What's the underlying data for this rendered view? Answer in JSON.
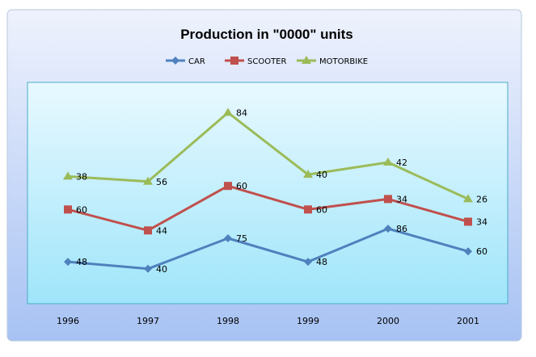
{
  "chart_data": {
    "type": "line",
    "stacked": true,
    "title": "Production in \"0000\" units",
    "categories": [
      "1996",
      "1997",
      "1998",
      "1999",
      "2000",
      "2001"
    ],
    "series": [
      {
        "name": "CAR",
        "color": "#4f81bd",
        "marker": "diamond",
        "values": [
          48,
          40,
          75,
          48,
          86,
          60
        ]
      },
      {
        "name": "SCOOTER",
        "color": "#c0504d",
        "marker": "square",
        "values": [
          60,
          44,
          60,
          60,
          34,
          34
        ]
      },
      {
        "name": "MOTORBIKE",
        "color": "#9bbb59",
        "marker": "triangle",
        "values": [
          38,
          56,
          84,
          40,
          42,
          26
        ]
      }
    ],
    "ylim": [
      0,
      250
    ],
    "y_axis_visible": false,
    "grid": false,
    "legend": "top",
    "data_labels": true
  }
}
